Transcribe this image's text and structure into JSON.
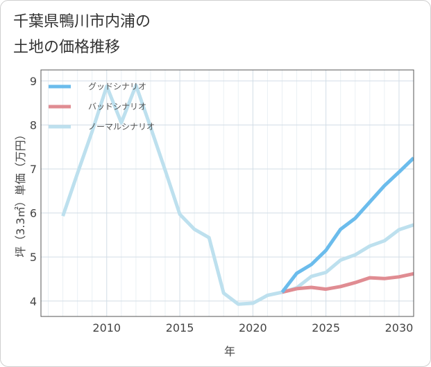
{
  "page": {
    "title_line1": "千葉県鴨川市内浦の",
    "title_line2": "土地の価格推移"
  },
  "chart_data": {
    "type": "line",
    "title": "千葉県鴨川市内浦の土地の価格推移",
    "xlabel": "年",
    "ylabel": "坪（3.3㎡）単価（万円）",
    "xlim": [
      2005.5,
      2031
    ],
    "ylim": [
      3.65,
      9.25
    ],
    "xticks": [
      2010,
      2015,
      2020,
      2025,
      2030
    ],
    "yticks": [
      4,
      5,
      6,
      7,
      8,
      9
    ],
    "grid": true,
    "legend_position": "top-left",
    "series": [
      {
        "name": "グッドシナリオ",
        "color": "#6bbcec",
        "x": [
          2022,
          2023,
          2024,
          2025,
          2026,
          2027,
          2028,
          2029,
          2030,
          2031
        ],
        "y": [
          4.2,
          4.63,
          4.83,
          5.15,
          5.63,
          5.88,
          6.25,
          6.62,
          6.93,
          7.25
        ]
      },
      {
        "name": "バッドシナリオ",
        "color": "#e08c92",
        "x": [
          2022,
          2023,
          2024,
          2025,
          2026,
          2027,
          2028,
          2029,
          2030,
          2031
        ],
        "y": [
          4.2,
          4.28,
          4.31,
          4.27,
          4.33,
          4.42,
          4.53,
          4.51,
          4.55,
          4.62
        ]
      },
      {
        "name": "ノーマルシナリオ",
        "color": "#bde0ee",
        "x": [
          2007,
          2008,
          2009,
          2010,
          2011,
          2012,
          2013,
          2014,
          2015,
          2016,
          2017,
          2018,
          2019,
          2020,
          2021,
          2022,
          2023,
          2024,
          2025,
          2026,
          2027,
          2028,
          2029,
          2030,
          2031
        ],
        "y": [
          5.93,
          6.9,
          7.85,
          8.88,
          8.05,
          8.9,
          7.95,
          6.97,
          5.97,
          5.63,
          5.44,
          4.18,
          3.93,
          3.95,
          4.13,
          4.2,
          4.3,
          4.56,
          4.65,
          4.93,
          5.05,
          5.25,
          5.37,
          5.62,
          5.73
        ]
      }
    ]
  }
}
